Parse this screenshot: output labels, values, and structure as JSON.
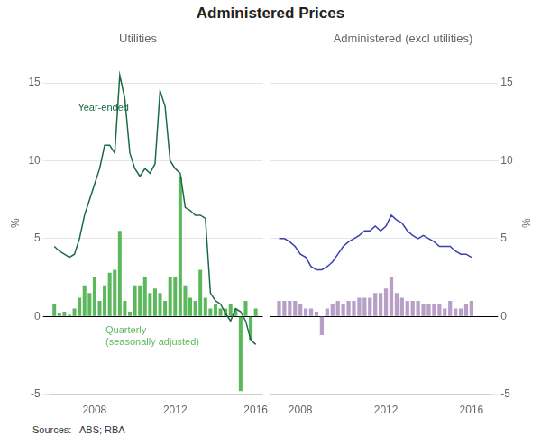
{
  "title": "Administered Prices",
  "annotations": [
    {
      "text": "Sources:   ABS; RBA"
    }
  ],
  "chart_data": [
    {
      "type": "bar",
      "subtitle": "Utilities",
      "ylabel": "%",
      "xlim": [
        2005.8,
        2016.35
      ],
      "xticks": [
        2008,
        2012,
        2016
      ],
      "ylim": [
        -5,
        17
      ],
      "yticks": [
        -5,
        0,
        5,
        10,
        15
      ],
      "grid": true,
      "x": [
        2006.0,
        2006.25,
        2006.5,
        2006.75,
        2007.0,
        2007.25,
        2007.5,
        2007.75,
        2008.0,
        2008.25,
        2008.5,
        2008.75,
        2009.0,
        2009.25,
        2009.5,
        2009.75,
        2010.0,
        2010.25,
        2010.5,
        2010.75,
        2011.0,
        2011.25,
        2011.5,
        2011.75,
        2012.0,
        2012.25,
        2012.5,
        2012.75,
        2013.0,
        2013.25,
        2013.5,
        2013.75,
        2014.0,
        2014.25,
        2014.5,
        2014.75,
        2015.0,
        2015.25,
        2015.5,
        2015.75,
        2016.0
      ],
      "series": [
        {
          "type": "bar",
          "color": "#5cb85c",
          "values": [
            0.8,
            0.2,
            0.3,
            0.1,
            0.5,
            1.2,
            2.0,
            1.5,
            2.5,
            1.0,
            2.0,
            2.8,
            3.0,
            5.5,
            1.0,
            0.3,
            2.0,
            2.0,
            2.5,
            1.5,
            1.8,
            1.5,
            1.0,
            2.5,
            2.5,
            9.0,
            2.0,
            1.2,
            1.0,
            3.0,
            1.2,
            0.5,
            0.8,
            0.5,
            0.5,
            0.8,
            0.5,
            -4.8,
            1.0,
            -1.5,
            0.5
          ]
        },
        {
          "type": "line",
          "color": "#1a6b45",
          "values": [
            4.5,
            4.2,
            4.0,
            3.8,
            4.0,
            5.0,
            6.5,
            7.5,
            8.5,
            9.5,
            11.0,
            11.0,
            10.5,
            15.5,
            14.0,
            10.5,
            9.5,
            9.0,
            9.5,
            9.2,
            9.8,
            14.5,
            13.5,
            10.0,
            9.5,
            9.2,
            7.0,
            6.8,
            6.5,
            6.5,
            6.3,
            1.5,
            1.0,
            0.8,
            0.2,
            -0.3,
            0.5,
            0.3,
            -0.3,
            -1.5,
            -1.8
          ]
        }
      ],
      "annotations": [
        {
          "text": "Year-ended",
          "color": "#1a6b45"
        },
        {
          "text": "Quarterly\n(seasonally adjusted)",
          "color": "#5cb85c"
        }
      ]
    },
    {
      "type": "bar",
      "subtitle": "Administered (excl utilities)",
      "ylabel": "%",
      "xlim": [
        2006.6,
        2016.9
      ],
      "xticks": [
        2008,
        2012,
        2016
      ],
      "ylim": [
        -5,
        17
      ],
      "yticks": [
        -5,
        0,
        5,
        10,
        15
      ],
      "grid": true,
      "x": [
        2007.0,
        2007.25,
        2007.5,
        2007.75,
        2008.0,
        2008.25,
        2008.5,
        2008.75,
        2009.0,
        2009.25,
        2009.5,
        2009.75,
        2010.0,
        2010.25,
        2010.5,
        2010.75,
        2011.0,
        2011.25,
        2011.5,
        2011.75,
        2012.0,
        2012.25,
        2012.5,
        2012.75,
        2013.0,
        2013.25,
        2013.5,
        2013.75,
        2014.0,
        2014.25,
        2014.5,
        2014.75,
        2015.0,
        2015.25,
        2015.5,
        2015.75,
        2016.0
      ],
      "series": [
        {
          "type": "bar",
          "color": "#b89fc8",
          "values": [
            1.0,
            1.0,
            1.0,
            1.0,
            0.8,
            0.5,
            0.5,
            0.3,
            -1.2,
            0.5,
            0.8,
            1.0,
            0.8,
            1.0,
            1.0,
            1.2,
            1.2,
            1.2,
            1.5,
            1.5,
            1.8,
            2.5,
            1.5,
            1.2,
            1.0,
            1.0,
            1.0,
            0.8,
            0.8,
            0.8,
            0.8,
            0.5,
            1.0,
            0.5,
            0.5,
            0.8,
            1.0
          ]
        },
        {
          "type": "line",
          "color": "#3d3db0",
          "values": [
            5.0,
            5.0,
            4.8,
            4.5,
            4.0,
            3.8,
            3.2,
            3.0,
            3.0,
            3.2,
            3.5,
            4.0,
            4.5,
            4.8,
            5.0,
            5.2,
            5.5,
            5.5,
            5.8,
            5.5,
            5.8,
            6.5,
            6.2,
            6.0,
            5.5,
            5.2,
            5.0,
            5.2,
            5.0,
            4.8,
            4.5,
            4.5,
            4.5,
            4.2,
            4.0,
            4.0,
            3.8
          ]
        }
      ]
    }
  ]
}
